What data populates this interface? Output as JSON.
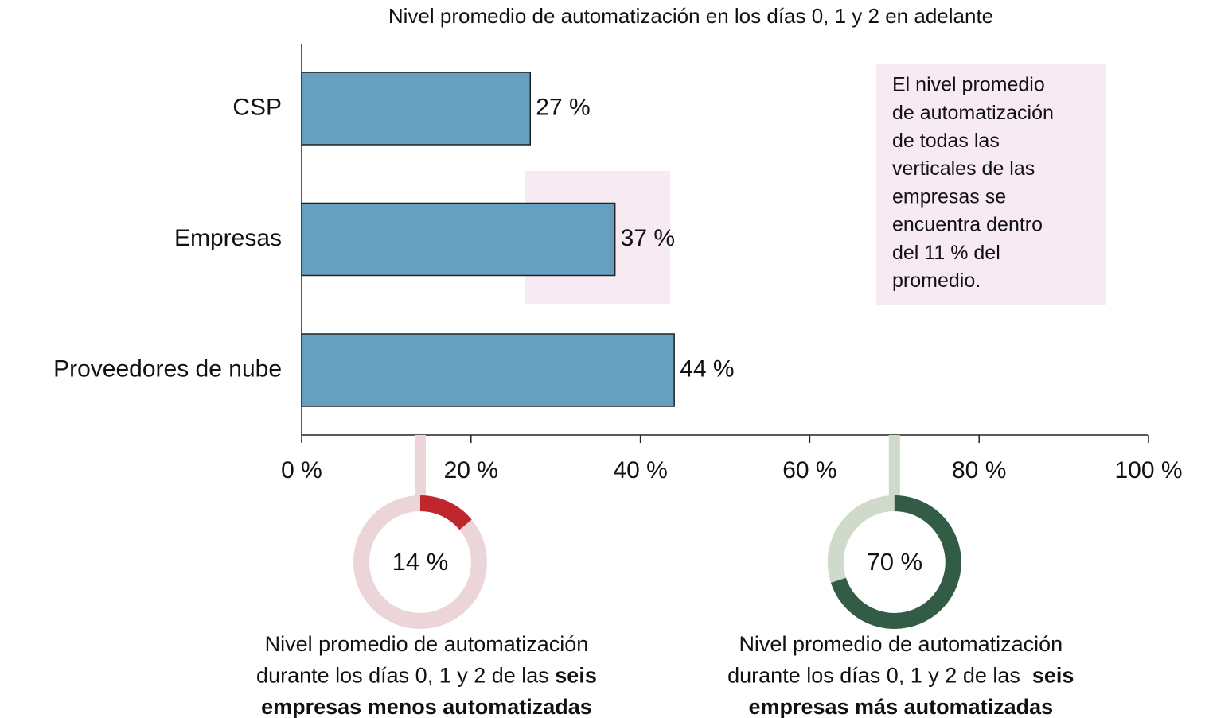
{
  "chart_data": [
    {
      "type": "bar",
      "orientation": "horizontal",
      "title": "Nivel promedio de automatización en los días 0, 1 y 2 en adelante",
      "categories": [
        "CSP",
        "Empresas",
        "Proveedores de nube"
      ],
      "values": [
        27,
        37,
        44
      ],
      "value_labels": [
        "27 %",
        "37 %",
        "44 %"
      ],
      "color": "#679fc0",
      "xlim": [
        0,
        100
      ],
      "xticks": [
        {
          "value": 0,
          "label": "0 %"
        },
        {
          "value": 20,
          "label": "20 %"
        },
        {
          "value": 40,
          "label": "40 %"
        },
        {
          "value": 60,
          "label": "60 %"
        },
        {
          "value": 80,
          "label": "80 %"
        },
        {
          "value": 100,
          "label": "100 %"
        }
      ],
      "annotation_lines": [
        "El nivel promedio",
        "de automatización",
        "de todas las",
        "verticales de las",
        "empresas se",
        "encuentra dentro",
        "del 11 % del",
        "promedio."
      ]
    },
    {
      "type": "donut",
      "value": 14,
      "value_label": "14 %",
      "color": "#c0272d",
      "track_color": "#ecd5d8",
      "caption_lines": [
        [
          {
            "text": "Nivel promedio de automatización",
            "bold": false
          }
        ],
        [
          {
            "text": "durante los días 0, 1 y 2 de las ",
            "bold": false
          },
          {
            "text": "seis",
            "bold": true
          }
        ],
        [
          {
            "text": "empresas menos automatizadas",
            "bold": true
          }
        ]
      ]
    },
    {
      "type": "donut",
      "value": 70,
      "value_label": "70 %",
      "color": "#335c47",
      "track_color": "#cfdacb",
      "caption_lines": [
        [
          {
            "text": "Nivel promedio de automatización",
            "bold": false
          }
        ],
        [
          {
            "text": "durante los días 0, 1 y 2 de las  ",
            "bold": false
          },
          {
            "text": "seis",
            "bold": true
          }
        ],
        [
          {
            "text": "empresas más automatizadas",
            "bold": true
          }
        ]
      ]
    }
  ]
}
